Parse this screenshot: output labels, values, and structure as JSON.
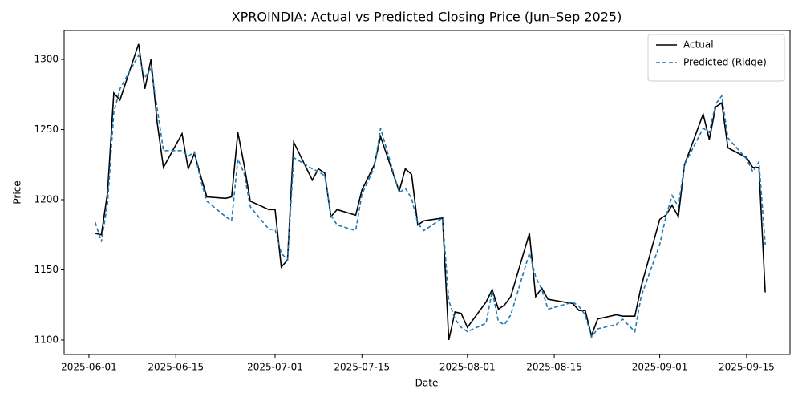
{
  "chart_data": {
    "type": "line",
    "title": "XPROINDIA: Actual vs Predicted Closing Price (Jun–Sep 2025)",
    "x_label": "Date",
    "y_label": "Price",
    "x": [
      "2025-06-02",
      "2025-06-03",
      "2025-06-04",
      "2025-06-05",
      "2025-06-06",
      "2025-06-09",
      "2025-06-10",
      "2025-06-11",
      "2025-06-12",
      "2025-06-13",
      "2025-06-16",
      "2025-06-17",
      "2025-06-18",
      "2025-06-19",
      "2025-06-20",
      "2025-06-23",
      "2025-06-24",
      "2025-06-25",
      "2025-06-26",
      "2025-06-27",
      "2025-06-30",
      "2025-07-01",
      "2025-07-02",
      "2025-07-03",
      "2025-07-04",
      "2025-07-07",
      "2025-07-08",
      "2025-07-09",
      "2025-07-10",
      "2025-07-11",
      "2025-07-14",
      "2025-07-15",
      "2025-07-17",
      "2025-07-18",
      "2025-07-21",
      "2025-07-22",
      "2025-07-23",
      "2025-07-24",
      "2025-07-25",
      "2025-07-28",
      "2025-07-29",
      "2025-07-30",
      "2025-07-31",
      "2025-08-01",
      "2025-08-04",
      "2025-08-05",
      "2025-08-06",
      "2025-08-07",
      "2025-08-08",
      "2025-08-11",
      "2025-08-12",
      "2025-08-13",
      "2025-08-14",
      "2025-08-18",
      "2025-08-19",
      "2025-08-20",
      "2025-08-21",
      "2025-08-22",
      "2025-08-25",
      "2025-08-26",
      "2025-08-28",
      "2025-08-29",
      "2025-09-01",
      "2025-09-02",
      "2025-09-03",
      "2025-09-04",
      "2025-09-05",
      "2025-09-08",
      "2025-09-09",
      "2025-09-10",
      "2025-09-11",
      "2025-09-12",
      "2025-09-15",
      "2025-09-16",
      "2025-09-17",
      "2025-09-18"
    ],
    "series": [
      {
        "name": "Actual",
        "color": "#000000",
        "dash": false,
        "values": [
          1176,
          1175,
          1205,
          1276,
          1271,
          1311,
          1279,
          1300,
          1255,
          1223,
          1247,
          1222,
          1233,
          1217,
          1202,
          1201,
          1202,
          1248,
          1225,
          1199,
          1193,
          1193,
          1152,
          1157,
          1241,
          1214,
          1222,
          1219,
          1188,
          1193,
          1189,
          1207,
          1225,
          1245,
          1206,
          1222,
          1218,
          1182,
          1185,
          1187,
          1100,
          1120,
          1119,
          1109,
          1127,
          1136,
          1122,
          1125,
          1131,
          1176,
          1131,
          1137,
          1129,
          1126,
          1121,
          1121,
          1103,
          1115,
          1118,
          1117,
          1117,
          1138,
          1186,
          1189,
          1196,
          1188,
          1225,
          1261,
          1243,
          1266,
          1269,
          1237,
          1230,
          1223,
          1223,
          1134
        ]
      },
      {
        "name": "Predicted (Ridge)",
        "color": "#1f77b4",
        "dash": true,
        "values": [
          1184,
          1170,
          1197,
          1262,
          1279,
          1303,
          1287,
          1294,
          1265,
          1235,
          1235,
          1231,
          1234,
          1214,
          1199,
          1188,
          1185,
          1229,
          1219,
          1195,
          1179,
          1179,
          1162,
          1157,
          1230,
          1222,
          1220,
          1217,
          1189,
          1182,
          1178,
          1204,
          1223,
          1251,
          1205,
          1208,
          1201,
          1183,
          1178,
          1187,
          1128,
          1115,
          1109,
          1106,
          1112,
          1135,
          1113,
          1111,
          1118,
          1162,
          1145,
          1136,
          1122,
          1127,
          1124,
          1118,
          1102,
          1108,
          1111,
          1115,
          1106,
          1131,
          1168,
          1188,
          1203,
          1195,
          1225,
          1251,
          1248,
          1268,
          1274,
          1244,
          1229,
          1220,
          1227,
          1168
        ]
      }
    ],
    "xlim": [
      "2025-05-28",
      "2025-09-22"
    ],
    "xticks": [
      "2025-06-01",
      "2025-06-15",
      "2025-07-01",
      "2025-07-15",
      "2025-08-01",
      "2025-08-15",
      "2025-09-01",
      "2025-09-15"
    ],
    "ylim": [
      1089.7,
      1320.6
    ],
    "yticks": [
      1100,
      1150,
      1200,
      1250,
      1300
    ],
    "grid": false,
    "legend": "upper right"
  }
}
